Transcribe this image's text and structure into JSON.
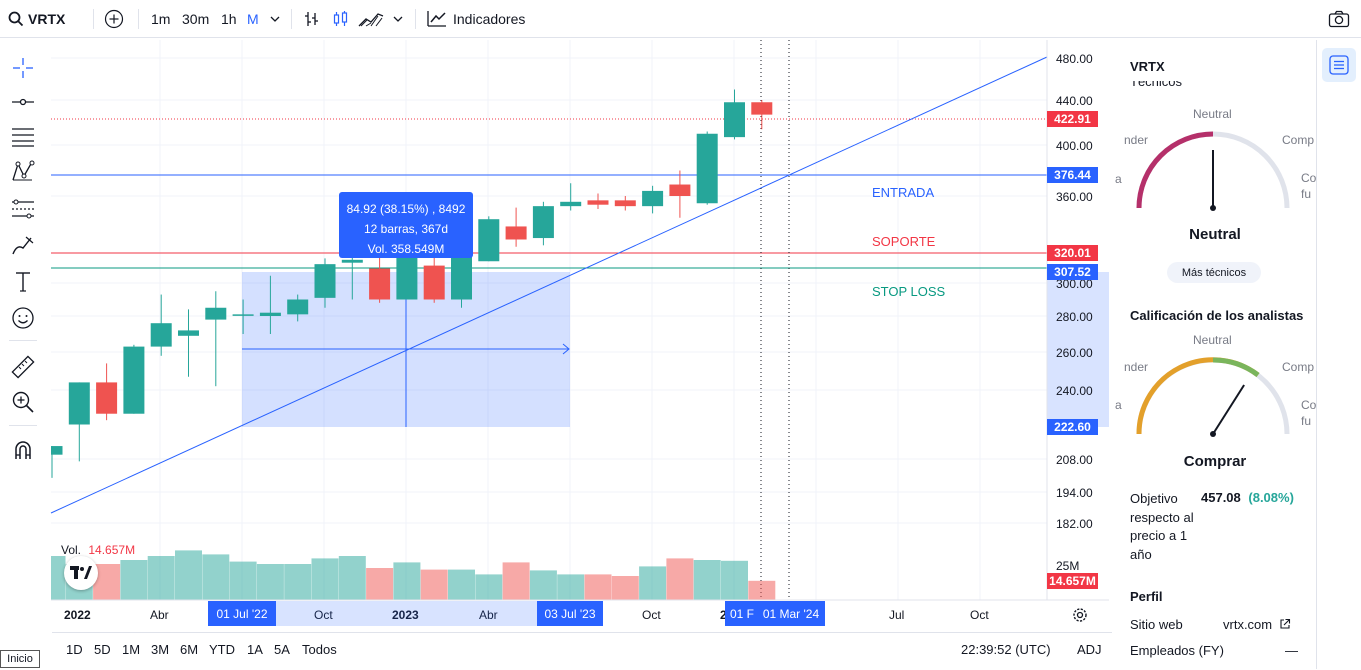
{
  "topbar": {
    "symbol": "VRTX",
    "intervals": [
      "1m",
      "30m",
      "1h",
      "M"
    ],
    "active_interval": "M",
    "indicators_label": "Indicadores"
  },
  "chart": {
    "price_axis": [
      "480.00",
      "440.00",
      "400.00",
      "360.00",
      "300.00",
      "280.00",
      "260.00",
      "240.00",
      "208.00",
      "194.00",
      "182.00"
    ],
    "price_tags": {
      "last": "422.91",
      "entrada": "376.44",
      "soporte": "320.01",
      "stop_loss": "307.52",
      "range_low": "222.60",
      "volume": "14.657M"
    },
    "lines": {
      "entrada": "ENTRADA",
      "soporte": "SOPORTE",
      "stop_loss": "STOP LOSS"
    },
    "measure": {
      "line1": "84.92 (38.15%) , 8492",
      "line2": "12 barras, 367d",
      "line3": "Vol. 358.549M"
    },
    "volume": {
      "label": "Vol.",
      "value": "14.657M",
      "axis_25m": "25M"
    },
    "time_axis": [
      "2022",
      "Abr",
      "Oct",
      "2023",
      "Abr",
      "Oct",
      "2",
      "Jul",
      "Oct"
    ],
    "time_tags": {
      "start": "01 Jul '22",
      "end": "03 Jul '23",
      "cursor_a": "01 F",
      "cursor_b": "01 Mar '24"
    },
    "colors": {
      "up": "#26a69a",
      "down": "#ef5350",
      "blue": "#2962ff",
      "red": "#f23645",
      "green": "#089981"
    },
    "candles": [
      {
        "o": 210,
        "h": 214,
        "l": 200,
        "c": 214
      },
      {
        "o": 224,
        "h": 244,
        "l": 207,
        "c": 244
      },
      {
        "o": 244,
        "h": 254,
        "l": 226,
        "c": 229
      },
      {
        "o": 229,
        "h": 264,
        "l": 229,
        "c": 263
      },
      {
        "o": 263,
        "h": 293,
        "l": 258,
        "c": 276
      },
      {
        "o": 269,
        "h": 284,
        "l": 247,
        "c": 272
      },
      {
        "o": 278,
        "h": 295,
        "l": 242,
        "c": 285
      },
      {
        "o": 281,
        "h": 290,
        "l": 270,
        "c": 281
      },
      {
        "o": 280,
        "h": 305,
        "l": 270,
        "c": 282
      },
      {
        "o": 281,
        "h": 293,
        "l": 277,
        "c": 290
      },
      {
        "o": 291,
        "h": 317,
        "l": 285,
        "c": 313
      },
      {
        "o": 314,
        "h": 330,
        "l": 290,
        "c": 316
      },
      {
        "o": 310,
        "h": 330,
        "l": 288,
        "c": 290
      },
      {
        "o": 290,
        "h": 330,
        "l": 290,
        "c": 323
      },
      {
        "o": 312,
        "h": 322,
        "l": 288,
        "c": 290
      },
      {
        "o": 290,
        "h": 328,
        "l": 285,
        "c": 326
      },
      {
        "o": 315,
        "h": 346,
        "l": 315,
        "c": 344
      },
      {
        "o": 339,
        "h": 352,
        "l": 325,
        "c": 330
      },
      {
        "o": 331,
        "h": 356,
        "l": 326,
        "c": 353
      },
      {
        "o": 353,
        "h": 370,
        "l": 350,
        "c": 356
      },
      {
        "o": 357,
        "h": 362,
        "l": 351,
        "c": 354
      },
      {
        "o": 357,
        "h": 360,
        "l": 350,
        "c": 353
      },
      {
        "o": 353,
        "h": 368,
        "l": 348,
        "c": 364
      },
      {
        "o": 369,
        "h": 380,
        "l": 345,
        "c": 360
      },
      {
        "o": 355,
        "h": 412,
        "l": 354,
        "c": 410
      },
      {
        "o": 407,
        "h": 450,
        "l": 405,
        "c": 438
      },
      {
        "o": 438,
        "h": 440,
        "l": 414,
        "c": 427
      }
    ],
    "volumes": [
      0.55,
      0.45,
      0.45,
      0.5,
      0.55,
      0.62,
      0.57,
      0.48,
      0.45,
      0.45,
      0.52,
      0.55,
      0.4,
      0.47,
      0.38,
      0.38,
      0.32,
      0.47,
      0.37,
      0.32,
      0.32,
      0.3,
      0.42,
      0.52,
      0.5,
      0.49,
      0.24
    ],
    "volume_up": [
      true,
      true,
      false,
      true,
      true,
      true,
      true,
      true,
      true,
      true,
      true,
      true,
      false,
      true,
      false,
      true,
      true,
      false,
      true,
      true,
      false,
      false,
      true,
      false,
      true,
      true,
      false
    ]
  },
  "bottombar": {
    "ranges": [
      "1D",
      "5D",
      "1M",
      "3M",
      "6M",
      "YTD",
      "1A",
      "5A",
      "Todos"
    ],
    "clock": "22:39:52 (UTC)",
    "adj": "ADJ",
    "inicio": "Inicio"
  },
  "panel": {
    "symbol": "VRTX",
    "tecnicos": "Técnicos",
    "gauge1": {
      "neutral_top": "Neutral",
      "left": "nder",
      "right": "Comp",
      "left_mid": "a",
      "right_mid": "Co",
      "right_mid2": "fu",
      "result": "Neutral",
      "value": 0.5
    },
    "mas_tecnicos": "Más técnicos",
    "analistas_title": "Calificación de los analistas",
    "gauge2": {
      "neutral_top": "Neutral",
      "left": "nder",
      "right": "Comp",
      "left_mid": "a",
      "right_mid": "Co",
      "right_mid2": "fu",
      "result": "Comprar",
      "value": 0.68
    },
    "objetivo_label": [
      "Objetivo",
      "respecto al",
      "precio a 1",
      "año"
    ],
    "objetivo_value": "457.08",
    "objetivo_pct": "(8.08%)",
    "perfil": "Perfil",
    "sitio_web_label": "Sitio web",
    "sitio_web_value": "vrtx.com",
    "empleados_label": "Empleados (FY)",
    "empleados_value": "—"
  }
}
